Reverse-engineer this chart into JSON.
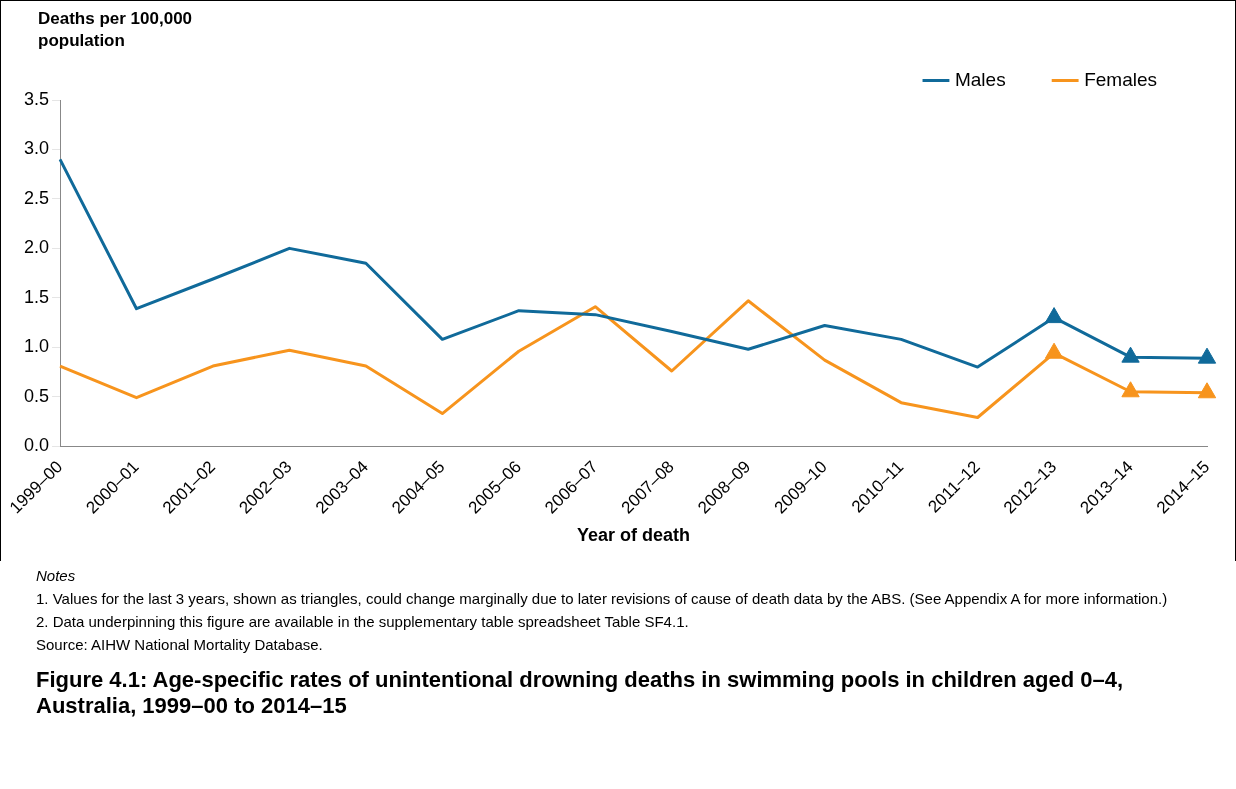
{
  "chart_data": {
    "type": "line",
    "title": "Figure 4.1: Age-specific rates of unintentional drowning deaths in swimming pools in children aged 0–4, Australia, 1999–00 to 2014–15",
    "ylabel": "Deaths per 100,000 population",
    "xlabel": "Year of death",
    "categories": [
      "1999–00",
      "2000–01",
      "2001–02",
      "2002–03",
      "2003–04",
      "2004–05",
      "2005–06",
      "2006–07",
      "2007–08",
      "2008–09",
      "2009–10",
      "2010–11",
      "2011–12",
      "2012–13",
      "2013–14",
      "2014–15"
    ],
    "series": [
      {
        "name": "Males",
        "color": "#106a9a",
        "values": [
          2.9,
          1.39,
          1.69,
          2.0,
          1.85,
          1.08,
          1.37,
          1.33,
          1.16,
          0.98,
          1.22,
          1.08,
          0.8,
          1.3,
          0.9,
          0.89
        ]
      },
      {
        "name": "Females",
        "color": "#f7941d",
        "values": [
          0.81,
          0.49,
          0.81,
          0.97,
          0.81,
          0.33,
          0.96,
          1.41,
          0.76,
          1.47,
          0.87,
          0.44,
          0.29,
          0.94,
          0.55,
          0.54
        ]
      },
      {
        "type": "scatter",
        "marker": "triangle",
        "color": "#106a9a",
        "x": [
          "2012–13",
          "2013–14",
          "2014–15"
        ],
        "values": [
          1.3,
          0.9,
          0.89
        ]
      },
      {
        "type": "scatter",
        "marker": "triangle",
        "color": "#f7941d",
        "x": [
          "2012–13",
          "2013–14",
          "2014–15"
        ],
        "values": [
          0.94,
          0.55,
          0.54
        ]
      }
    ],
    "marker": "none",
    "line_style": "solid",
    "ylim": [
      0,
      3.5
    ],
    "yticks": [
      {
        "value": 0,
        "label": "0.0"
      },
      0.5,
      {
        "value": 1,
        "label": "1.0"
      },
      1.5,
      {
        "value": 2,
        "label": "2.0"
      },
      2.5,
      {
        "value": 3,
        "label": "3.0"
      },
      3.5
    ],
    "grid": false,
    "legend": "top right",
    "annotations": [
      "Notes",
      "1. Values for the last 3 years, shown as triangles, could change marginally due to later revisions of cause of death data by the ABS. (See Appendix A for more information.)",
      "2. Data underpinning this figure are available in the supplementary table spreadsheet Table SF4.1.",
      "Source: AIHW National Mortality Database."
    ]
  }
}
